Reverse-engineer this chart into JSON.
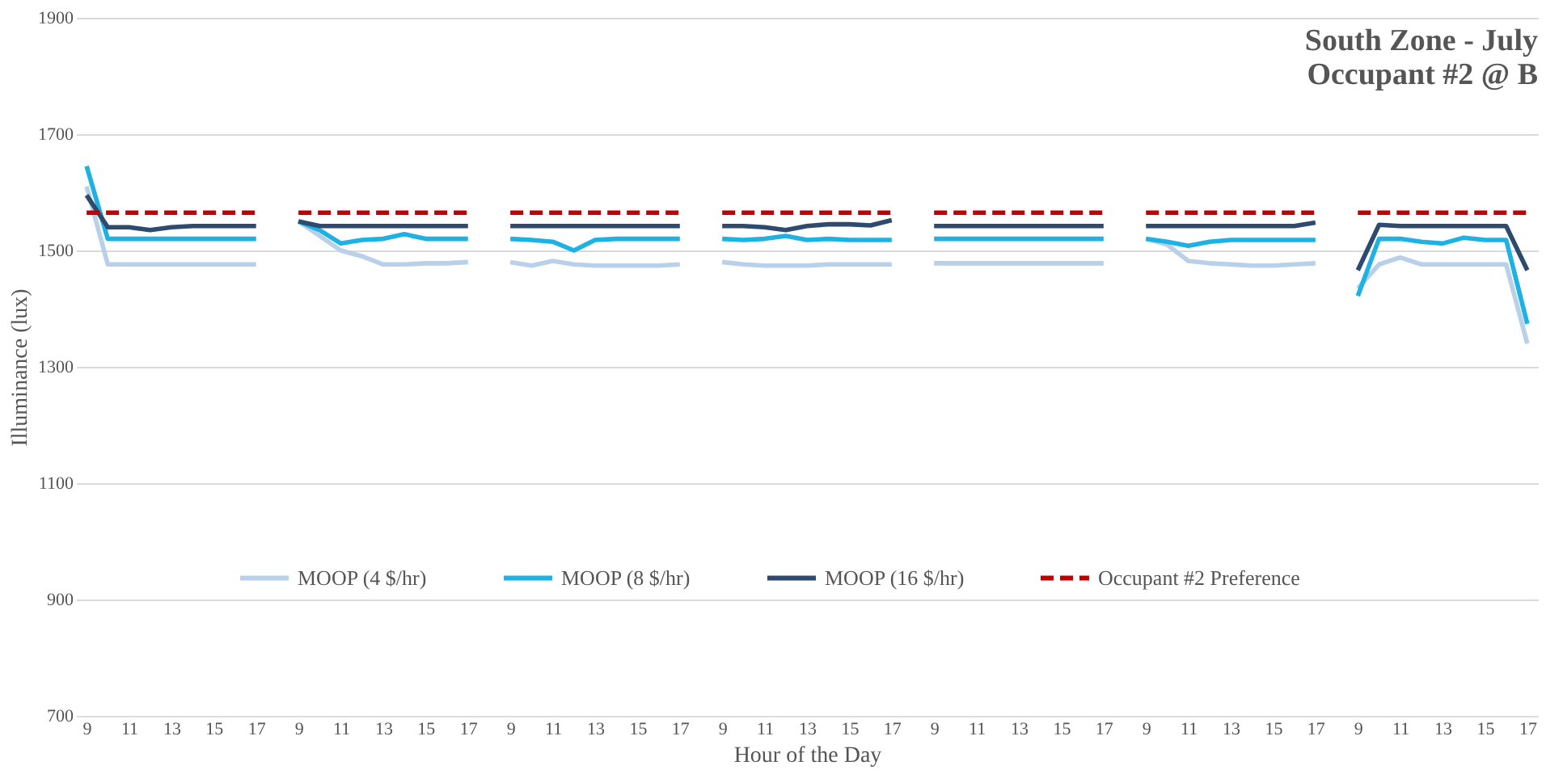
{
  "chart_data": {
    "type": "line",
    "title": [
      "South Zone - July",
      "Occupant #2 @ B"
    ],
    "xlabel": "Hour of the Day",
    "ylabel": "Illuminance (lux)",
    "categories": [
      "9",
      null,
      "11",
      null,
      "13",
      null,
      "15",
      null,
      "17",
      null,
      "9",
      null,
      "11",
      null,
      "13",
      null,
      "15",
      null,
      "17",
      null,
      "9",
      null,
      "11",
      null,
      "13",
      null,
      "15",
      null,
      "17",
      null,
      "9",
      null,
      "11",
      null,
      "13",
      null,
      "15",
      null,
      "17",
      null,
      "9",
      null,
      "11",
      null,
      "13",
      null,
      "15",
      null,
      "17",
      null,
      "9",
      null,
      "11",
      null,
      "13",
      null,
      "15",
      null,
      "17",
      null,
      "9",
      null,
      "11",
      null,
      "13",
      null,
      "15",
      null,
      "17"
    ],
    "series": [
      {
        "name": "MOOP (4 $/hr)",
        "color": "#b8d0e8",
        "values": [
          1610,
          1476,
          1476,
          1476,
          1476,
          1476,
          1476,
          1476,
          1476,
          null,
          1550,
          1525,
          1500,
          1490,
          1476,
          1476,
          1478,
          1478,
          1480,
          null,
          1480,
          1474,
          1482,
          1476,
          1474,
          1474,
          1474,
          1474,
          1476,
          null,
          1480,
          1476,
          1474,
          1474,
          1474,
          1476,
          1476,
          1476,
          1476,
          null,
          1478,
          1478,
          1478,
          1478,
          1478,
          1478,
          1478,
          1478,
          1478,
          null,
          1520,
          1510,
          1482,
          1478,
          1476,
          1474,
          1474,
          1476,
          1478,
          null,
          1435,
          1476,
          1488,
          1476,
          1476,
          1476,
          1476,
          1476,
          1340
        ]
      },
      {
        "name": "MOOP (8 $/hr)",
        "color": "#1eb2e4",
        "values": [
          1645,
          1520,
          1520,
          1520,
          1520,
          1520,
          1520,
          1520,
          1520,
          null,
          1550,
          1535,
          1512,
          1518,
          1520,
          1528,
          1520,
          1520,
          1520,
          null,
          1520,
          1518,
          1515,
          1500,
          1518,
          1520,
          1520,
          1520,
          1520,
          null,
          1520,
          1518,
          1520,
          1525,
          1518,
          1520,
          1518,
          1518,
          1518,
          null,
          1520,
          1520,
          1520,
          1520,
          1520,
          1520,
          1520,
          1520,
          1520,
          null,
          1520,
          1515,
          1508,
          1515,
          1518,
          1518,
          1518,
          1518,
          1518,
          null,
          1422,
          1520,
          1520,
          1515,
          1512,
          1522,
          1518,
          1518,
          1374
        ]
      },
      {
        "name": "MOOP (16 $/hr)",
        "color": "#2e4a6e",
        "values": [
          1595,
          1540,
          1540,
          1535,
          1540,
          1542,
          1542,
          1542,
          1542,
          null,
          1550,
          1542,
          1542,
          1542,
          1542,
          1542,
          1542,
          1542,
          1542,
          null,
          1542,
          1542,
          1542,
          1542,
          1542,
          1542,
          1542,
          1542,
          1542,
          null,
          1542,
          1542,
          1540,
          1535,
          1542,
          1545,
          1545,
          1543,
          1552,
          null,
          1542,
          1542,
          1542,
          1542,
          1542,
          1542,
          1542,
          1542,
          1542,
          null,
          1542,
          1542,
          1542,
          1542,
          1542,
          1542,
          1542,
          1542,
          1548,
          null,
          1466,
          1544,
          1542,
          1542,
          1542,
          1542,
          1542,
          1542,
          1466
        ]
      },
      {
        "name": "Occupant #2 Preference",
        "color": "#c00000",
        "line_style": "dashed",
        "values": [
          1565,
          1565,
          1565,
          1565,
          1565,
          1565,
          1565,
          1565,
          1565,
          null,
          1565,
          1565,
          1565,
          1565,
          1565,
          1565,
          1565,
          1565,
          1565,
          null,
          1565,
          1565,
          1565,
          1565,
          1565,
          1565,
          1565,
          1565,
          1565,
          null,
          1565,
          1565,
          1565,
          1565,
          1565,
          1565,
          1565,
          1565,
          1565,
          null,
          1565,
          1565,
          1565,
          1565,
          1565,
          1565,
          1565,
          1565,
          1565,
          null,
          1565,
          1565,
          1565,
          1565,
          1565,
          1565,
          1565,
          1565,
          1565,
          null,
          1565,
          1565,
          1565,
          1565,
          1565,
          1565,
          1565,
          1565,
          1565
        ]
      }
    ],
    "ylim": [
      700,
      1900
    ],
    "yticks": [
      700,
      900,
      1100,
      1300,
      1500,
      1700,
      1900
    ],
    "grid": "y",
    "legend": "bottom"
  }
}
